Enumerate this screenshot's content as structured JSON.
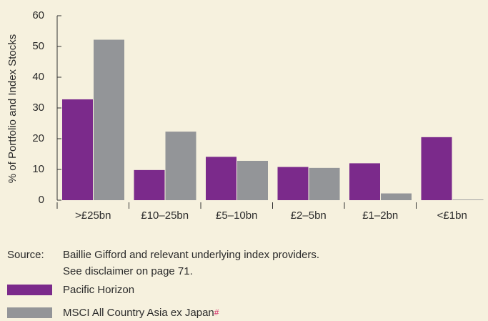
{
  "chart_data": {
    "type": "bar",
    "ylabel": "% of Portfolio and Index Stocks",
    "categories": [
      ">£25bn",
      "£10–25bn",
      "£5–10bn",
      "£2–5bn",
      "£1–2bn",
      "<£1bn"
    ],
    "series": [
      {
        "name": "Pacific Horizon",
        "color": "#7b2a8b",
        "values": [
          32.8,
          9.8,
          14.1,
          10.8,
          12.0,
          20.5
        ]
      },
      {
        "name": "MSCI All Country Asia ex Japan",
        "color": "#939598",
        "values": [
          52.2,
          22.3,
          12.8,
          10.5,
          2.2,
          0.2
        ]
      }
    ],
    "legend_footnote_mark": "#",
    "ylim": [
      0,
      60
    ],
    "yticks": [
      0,
      10,
      20,
      30,
      40,
      50,
      60
    ],
    "source_label": "Source:",
    "source_lines": [
      "Baillie Gifford and relevant underlying index providers.",
      "See disclaimer on page 71."
    ]
  }
}
